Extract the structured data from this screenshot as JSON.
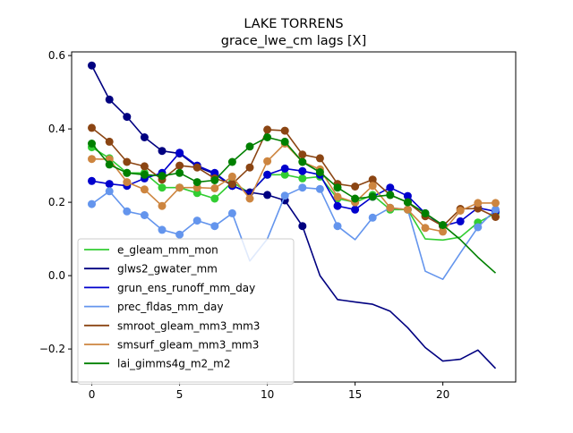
{
  "chart_data": {
    "type": "line",
    "title": "LAKE TORRENS",
    "subtitle": "grace_lwe_cm lags [X]",
    "xlabel": "",
    "ylabel": "",
    "xlim": [
      -1.15,
      24.15
    ],
    "ylim": [
      -0.29,
      0.61
    ],
    "x_ticks": [
      0,
      5,
      10,
      15,
      20
    ],
    "y_ticks": [
      -0.2,
      0.0,
      0.2,
      0.4,
      0.6
    ],
    "x_tick_labels": [
      "0",
      "5",
      "10",
      "15",
      "20"
    ],
    "y_tick_labels": [
      "−0.2",
      "0.0",
      "0.2",
      "0.4",
      "0.6"
    ],
    "grid": false,
    "legend_position": "lower-left",
    "x": [
      0,
      1,
      2,
      3,
      4,
      5,
      6,
      7,
      8,
      9,
      10,
      11,
      12,
      13,
      14,
      15,
      16,
      17,
      18,
      19,
      20,
      21,
      22,
      23
    ],
    "series": [
      {
        "name": "e_gleam_mm_mon",
        "color": "#32cd32",
        "values": [
          0.35,
          0.32,
          0.28,
          0.28,
          0.24,
          0.24,
          0.225,
          0.21,
          0.255,
          0.225,
          0.275,
          0.275,
          0.265,
          0.27,
          0.21,
          0.2,
          0.22,
          0.18,
          0.18,
          0.1,
          0.097,
          0.105,
          0.145,
          0.17
        ],
        "markers": [
          true,
          true,
          true,
          true,
          true,
          true,
          true,
          true,
          true,
          false,
          true,
          true,
          true,
          true,
          true,
          true,
          true,
          true,
          true,
          false,
          false,
          false,
          true,
          true
        ]
      },
      {
        "name": "glws2_gwater_mm",
        "color": "#000080",
        "values": [
          0.573,
          0.48,
          0.433,
          0.377,
          0.34,
          0.333,
          0.297,
          0.277,
          0.245,
          0.227,
          0.22,
          0.205,
          0.135,
          0.0,
          -0.065,
          -0.072,
          -0.078,
          -0.097,
          -0.142,
          -0.196,
          -0.233,
          -0.228,
          -0.203,
          -0.253
        ],
        "markers": [
          true,
          true,
          true,
          true,
          true,
          true,
          true,
          true,
          true,
          true,
          true,
          true,
          true,
          false,
          false,
          false,
          false,
          false,
          false,
          false,
          false,
          false,
          false,
          false
        ]
      },
      {
        "name": "grun_ens_runoff_mm_day",
        "color": "#0000cd",
        "values": [
          0.258,
          0.25,
          0.245,
          0.265,
          0.28,
          0.335,
          0.3,
          0.28,
          0.245,
          0.225,
          0.275,
          0.292,
          0.285,
          0.275,
          0.19,
          0.18,
          0.215,
          0.24,
          0.217,
          0.17,
          0.135,
          0.148,
          0.185,
          0.175
        ],
        "markers": [
          true,
          true,
          true,
          true,
          true,
          true,
          true,
          true,
          true,
          false,
          true,
          true,
          true,
          true,
          true,
          true,
          true,
          true,
          true,
          true,
          true,
          true,
          true,
          true
        ]
      },
      {
        "name": "prec_fldas_mm_day",
        "color": "#6495ed",
        "values": [
          0.195,
          0.23,
          0.175,
          0.165,
          0.125,
          0.112,
          0.15,
          0.135,
          0.17,
          0.04,
          0.1,
          0.218,
          0.24,
          0.236,
          0.135,
          0.098,
          0.158,
          0.185,
          0.18,
          0.012,
          -0.01,
          0.062,
          0.132,
          0.18
        ],
        "markers": [
          true,
          true,
          true,
          true,
          true,
          true,
          true,
          true,
          true,
          false,
          false,
          true,
          true,
          true,
          true,
          false,
          true,
          true,
          true,
          false,
          false,
          false,
          true,
          true
        ]
      },
      {
        "name": "smroot_gleam_mm3_mm3",
        "color": "#8b4513",
        "values": [
          0.403,
          0.365,
          0.31,
          0.298,
          0.262,
          0.3,
          0.295,
          0.265,
          0.25,
          0.295,
          0.398,
          0.395,
          0.33,
          0.32,
          0.25,
          0.243,
          0.262,
          0.22,
          0.2,
          0.162,
          0.135,
          0.182,
          0.183,
          0.16
        ],
        "markers": [
          true,
          true,
          true,
          true,
          true,
          true,
          true,
          true,
          true,
          true,
          true,
          true,
          true,
          true,
          true,
          true,
          true,
          true,
          true,
          true,
          true,
          true,
          true,
          true
        ]
      },
      {
        "name": "smsurf_gleam_mm3_mm3",
        "color": "#cd853f",
        "values": [
          0.318,
          0.317,
          0.255,
          0.235,
          0.19,
          0.24,
          0.24,
          0.238,
          0.27,
          0.21,
          0.312,
          0.36,
          0.31,
          0.29,
          0.215,
          0.2,
          0.245,
          0.185,
          0.18,
          0.13,
          0.12,
          0.177,
          0.198,
          0.198
        ],
        "markers": [
          true,
          true,
          true,
          true,
          true,
          true,
          true,
          true,
          true,
          true,
          true,
          true,
          true,
          true,
          true,
          true,
          true,
          true,
          true,
          true,
          true,
          true,
          true,
          true
        ]
      },
      {
        "name": "lai_gimms4g_m2_m2",
        "color": "#008000",
        "values": [
          0.36,
          0.303,
          0.28,
          0.275,
          0.272,
          0.28,
          0.255,
          0.26,
          0.31,
          0.352,
          0.377,
          0.365,
          0.31,
          0.282,
          0.24,
          0.21,
          0.215,
          0.22,
          0.2,
          0.17,
          0.138,
          0.098,
          0.05,
          0.007
        ],
        "markers": [
          true,
          true,
          true,
          true,
          true,
          true,
          true,
          true,
          true,
          true,
          true,
          true,
          true,
          true,
          true,
          true,
          true,
          true,
          true,
          true,
          true,
          false,
          false,
          false
        ]
      }
    ]
  }
}
